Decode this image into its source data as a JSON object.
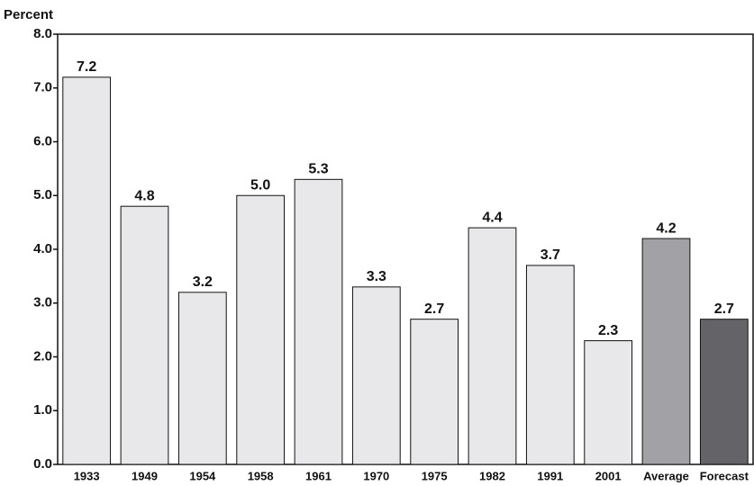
{
  "chart_data": {
    "type": "bar",
    "y_label": "Percent",
    "categories": [
      "1933",
      "1949",
      "1954",
      "1958",
      "1961",
      "1970",
      "1975",
      "1982",
      "1991",
      "2001",
      "Average",
      "Forecast"
    ],
    "values": [
      7.2,
      4.8,
      3.2,
      5.0,
      5.3,
      3.3,
      2.7,
      4.4,
      3.7,
      2.3,
      4.2,
      2.7
    ],
    "value_labels": [
      "7.2",
      "4.8",
      "3.2",
      "5.0",
      "5.3",
      "3.3",
      "2.7",
      "4.4",
      "3.7",
      "2.3",
      "4.2",
      "2.7"
    ],
    "colors": [
      "#e8e8ea",
      "#e8e8ea",
      "#e8e8ea",
      "#e8e8ea",
      "#e8e8ea",
      "#e8e8ea",
      "#e8e8ea",
      "#e8e8ea",
      "#e8e8ea",
      "#e8e8ea",
      "#a2a2a6",
      "#646468"
    ],
    "ylim": [
      0,
      8
    ],
    "yticks": [
      {
        "value": 0,
        "label": "0.0"
      },
      {
        "value": 1,
        "label": "1.0"
      },
      {
        "value": 2,
        "label": "2.0"
      },
      {
        "value": 3,
        "label": "3.0"
      },
      {
        "value": 4,
        "label": "4.0"
      },
      {
        "value": 5,
        "label": "5.0"
      },
      {
        "value": 6,
        "label": "6.0"
      },
      {
        "value": 7,
        "label": "7.0"
      },
      {
        "value": 8,
        "label": "8.0"
      }
    ],
    "grid": false
  }
}
